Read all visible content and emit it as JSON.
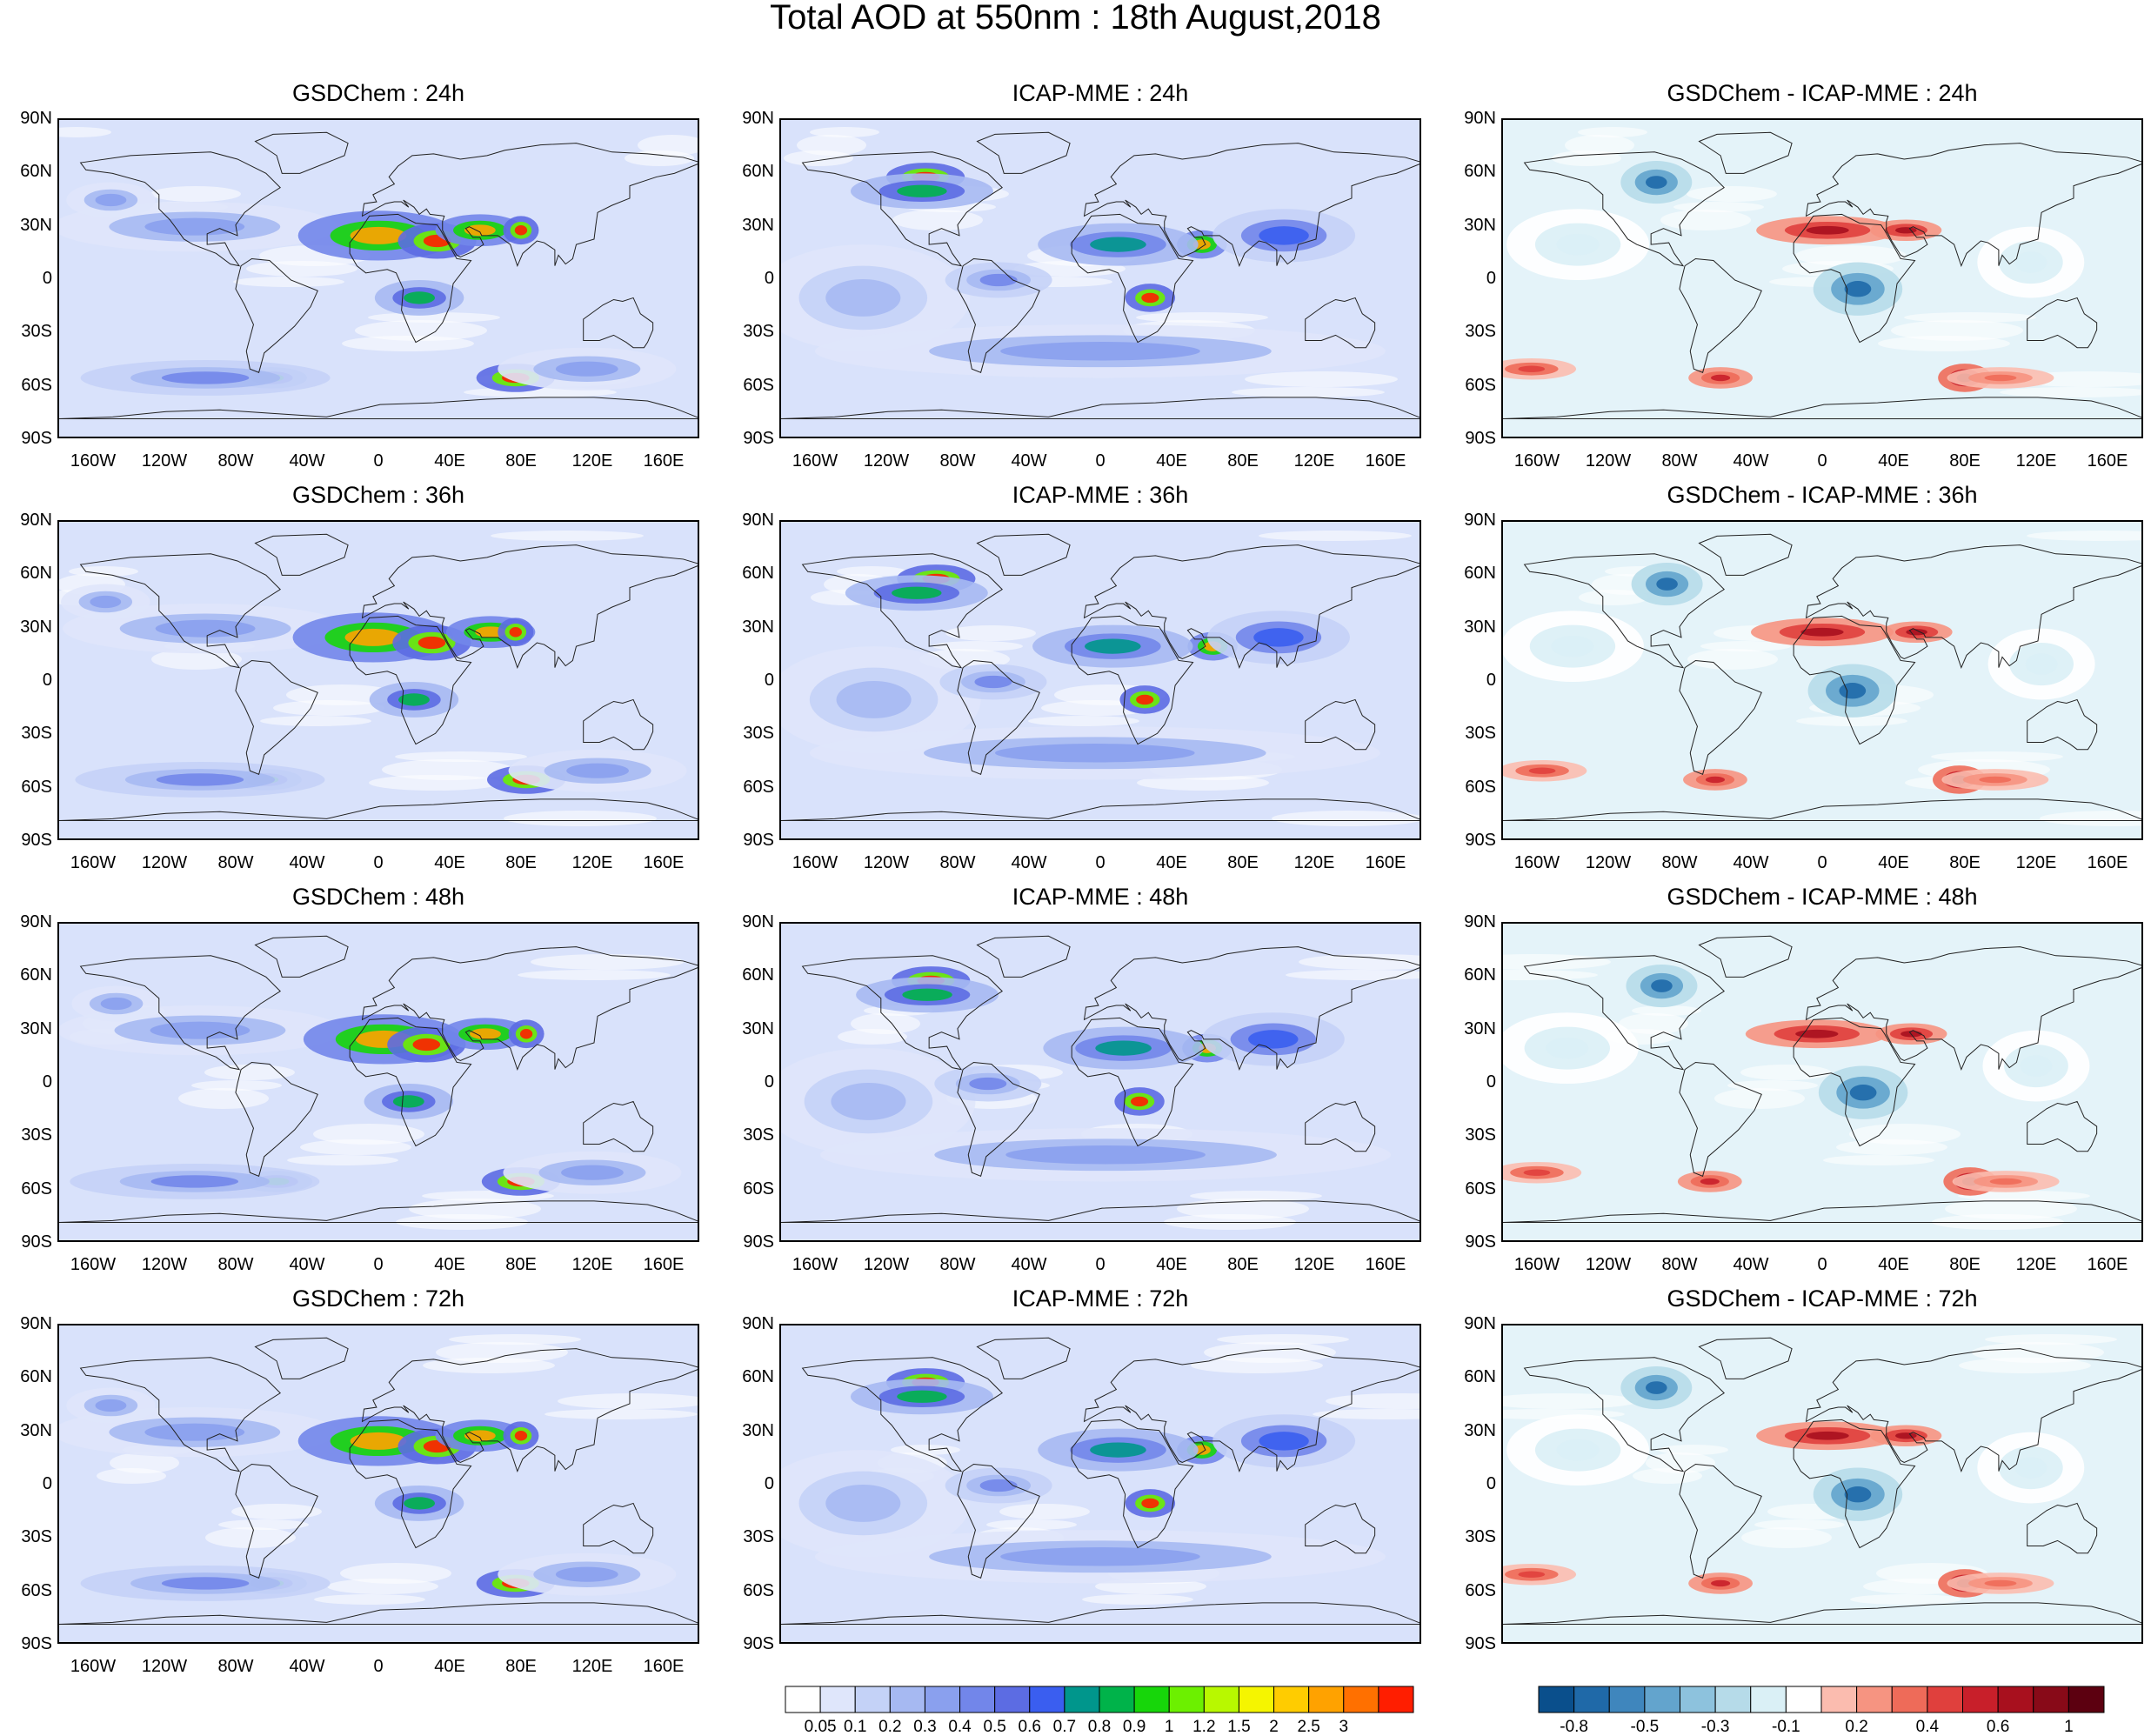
{
  "main_title": "Total AOD at 550nm : 18th August,2018",
  "panels": [
    {
      "title": "GSDChem : 24h",
      "kind": "aod"
    },
    {
      "title": "ICAP-MME : 24h",
      "kind": "aod"
    },
    {
      "title": "GSDChem - ICAP-MME : 24h",
      "kind": "diff"
    },
    {
      "title": "GSDChem : 36h",
      "kind": "aod"
    },
    {
      "title": "ICAP-MME : 36h",
      "kind": "aod"
    },
    {
      "title": "GSDChem - ICAP-MME : 36h",
      "kind": "diff"
    },
    {
      "title": "GSDChem : 48h",
      "kind": "aod"
    },
    {
      "title": "ICAP-MME : 48h",
      "kind": "aod"
    },
    {
      "title": "GSDChem - ICAP-MME : 48h",
      "kind": "diff"
    },
    {
      "title": "GSDChem : 72h",
      "kind": "aod"
    },
    {
      "title": "ICAP-MME : 72h",
      "kind": "aod"
    },
    {
      "title": "GSDChem - ICAP-MME : 72h",
      "kind": "diff"
    }
  ],
  "lat_labels": [
    "90N",
    "60N",
    "30N",
    "0",
    "30S",
    "60S",
    "90S"
  ],
  "lon_labels": [
    "160W",
    "120W",
    "80W",
    "40W",
    "0",
    "40E",
    "80E",
    "120E",
    "160E"
  ],
  "aod_colorbar": {
    "labels": [
      "0.05",
      "0.1",
      "0.2",
      "0.3",
      "0.4",
      "0.5",
      "0.6",
      "0.7",
      "0.8",
      "0.9",
      "1",
      "1.2",
      "1.5",
      "2",
      "2.5",
      "3"
    ],
    "colors": [
      "#ffffff",
      "#dfe6fb",
      "#c4d2f7",
      "#a6b9f2",
      "#8aa0ee",
      "#7286ea",
      "#5c6ce3",
      "#3a5ef0",
      "#00968c",
      "#00b34a",
      "#17d60a",
      "#6cf000",
      "#b8f800",
      "#f5f500",
      "#ffcc00",
      "#ffa200",
      "#ff7000",
      "#ff1e00"
    ]
  },
  "diff_colorbar": {
    "labels": [
      "-0.8",
      "-0.5",
      "-0.3",
      "-0.1",
      "0.2",
      "0.4",
      "0.6",
      "1"
    ],
    "colors": [
      "#0a4f8c",
      "#1f69a8",
      "#3f86bd",
      "#63a4cd",
      "#8dc2dd",
      "#b6dbe9",
      "#daf0f6",
      "#ffffff",
      "#fbbcaf",
      "#f69481",
      "#ee6b59",
      "#e0403d",
      "#c81f2a",
      "#a8101e",
      "#880a18",
      "#5c0010"
    ]
  }
}
